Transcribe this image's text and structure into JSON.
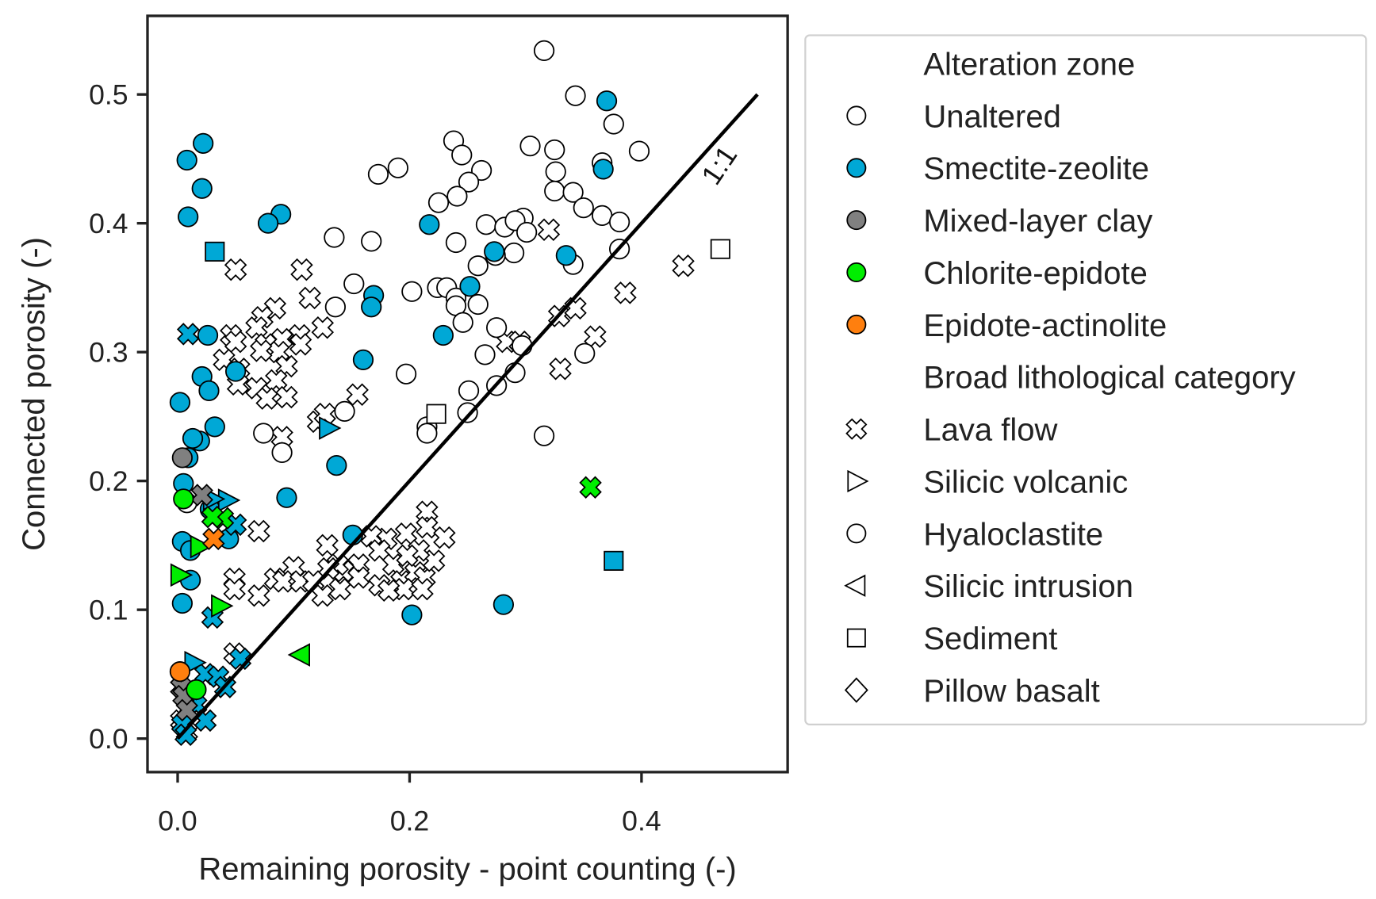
{
  "chart_data": {
    "type": "scatter",
    "xlabel": "Remaining porosity - point counting (-)",
    "ylabel": "Connected porosity (-)",
    "xlim": [
      -0.026,
      0.526
    ],
    "ylim": [
      -0.026,
      0.561
    ],
    "xticks": [
      0.0,
      0.2,
      0.4
    ],
    "xtick_labels": [
      "0.0",
      "0.2",
      "0.4"
    ],
    "yticks": [
      0.0,
      0.1,
      0.2,
      0.3,
      0.4,
      0.5
    ],
    "ytick_labels": [
      "0.0",
      "0.1",
      "0.2",
      "0.3",
      "0.4",
      "0.5"
    ],
    "grid": false,
    "legend_placement": "outside-right",
    "reference_line": {
      "label": "1:1",
      "from": [
        0,
        0
      ],
      "to": [
        0.5,
        0.5
      ],
      "color": "#000000"
    },
    "colors": {
      "Unaltered": "#ffffff",
      "Smectite-zeolite": "#00a8d6",
      "Mixed-layer clay": "#808080",
      "Chlorite-epidote": "#00ee00",
      "Epidote-actinolite": "#ff7f0e"
    },
    "legend": [
      {
        "label": "Alteration zone",
        "marker": "none"
      },
      {
        "label": "Unaltered",
        "marker": "circle",
        "color": "#ffffff"
      },
      {
        "label": "Smectite-zeolite",
        "marker": "circle",
        "color": "#00a8d6"
      },
      {
        "label": "Mixed-layer clay",
        "marker": "circle",
        "color": "#808080"
      },
      {
        "label": "Chlorite-epidote",
        "marker": "circle",
        "color": "#00ee00"
      },
      {
        "label": "Epidote-actinolite",
        "marker": "circle",
        "color": "#ff7f0e"
      },
      {
        "label": "Broad lithological category",
        "marker": "none"
      },
      {
        "label": "Lava flow",
        "marker": "x",
        "color": "#ffffff"
      },
      {
        "label": "Silicic volcanic",
        "marker": "tri-right",
        "color": "#ffffff"
      },
      {
        "label": "Hyaloclastite",
        "marker": "circle",
        "color": "#ffffff"
      },
      {
        "label": "Silicic intrusion",
        "marker": "tri-left",
        "color": "#ffffff"
      },
      {
        "label": "Sediment",
        "marker": "square",
        "color": "#ffffff"
      },
      {
        "label": "Pillow basalt",
        "marker": "diamond",
        "color": "#ffffff"
      }
    ],
    "series": [
      {
        "alteration": "Unaltered",
        "lithology": "Lava flow",
        "marker": "x",
        "points": [
          [
            0.05,
            0.364
          ],
          [
            0.107,
            0.364
          ],
          [
            0.32,
            0.395
          ],
          [
            0.436,
            0.367
          ],
          [
            0.386,
            0.346
          ],
          [
            0.114,
            0.342
          ],
          [
            0.084,
            0.334
          ],
          [
            0.073,
            0.327
          ],
          [
            0.068,
            0.319
          ],
          [
            0.125,
            0.319
          ],
          [
            0.105,
            0.313
          ],
          [
            0.046,
            0.313
          ],
          [
            0.05,
            0.308
          ],
          [
            0.076,
            0.306
          ],
          [
            0.09,
            0.31
          ],
          [
            0.106,
            0.306
          ],
          [
            0.087,
            0.3
          ],
          [
            0.072,
            0.301
          ],
          [
            0.04,
            0.294
          ],
          [
            0.053,
            0.287
          ],
          [
            0.094,
            0.289
          ],
          [
            0.085,
            0.278
          ],
          [
            0.052,
            0.275
          ],
          [
            0.068,
            0.272
          ],
          [
            0.077,
            0.264
          ],
          [
            0.094,
            0.265
          ],
          [
            0.155,
            0.267
          ],
          [
            0.329,
            0.328
          ],
          [
            0.343,
            0.334
          ],
          [
            0.36,
            0.312
          ],
          [
            0.33,
            0.287
          ],
          [
            0.284,
            0.308
          ],
          [
            0.295,
            0.308
          ],
          [
            0.121,
            0.246
          ],
          [
            0.127,
            0.252
          ],
          [
            0.09,
            0.234
          ],
          [
            0.07,
            0.161
          ],
          [
            0.049,
            0.124
          ],
          [
            0.049,
            0.116
          ],
          [
            0.07,
            0.111
          ],
          [
            0.049,
            0.066
          ],
          [
            0.215,
            0.176
          ],
          [
            0.215,
            0.164
          ],
          [
            0.23,
            0.156
          ],
          [
            0.129,
            0.15
          ],
          [
            0.197,
            0.159
          ],
          [
            0.18,
            0.155
          ],
          [
            0.167,
            0.157
          ],
          [
            0.174,
            0.146
          ],
          [
            0.186,
            0.135
          ],
          [
            0.156,
            0.135
          ],
          [
            0.143,
            0.13
          ],
          [
            0.138,
            0.135
          ],
          [
            0.13,
            0.132
          ],
          [
            0.1,
            0.133
          ],
          [
            0.084,
            0.124
          ],
          [
            0.091,
            0.122
          ],
          [
            0.106,
            0.122
          ],
          [
            0.117,
            0.122
          ],
          [
            0.125,
            0.111
          ],
          [
            0.14,
            0.116
          ],
          [
            0.156,
            0.125
          ],
          [
            0.174,
            0.119
          ],
          [
            0.193,
            0.122
          ],
          [
            0.205,
            0.129
          ],
          [
            0.213,
            0.125
          ],
          [
            0.221,
            0.138
          ],
          [
            0.208,
            0.146
          ],
          [
            0.198,
            0.142
          ],
          [
            0.195,
            0.116
          ],
          [
            0.182,
            0.115
          ],
          [
            0.211,
            0.116
          ],
          [
            0.011,
            0.025
          ],
          [
            0.003,
            0.014
          ],
          [
            0.008,
            0.005
          ]
        ]
      },
      {
        "alteration": "Unaltered",
        "lithology": "Hyaloclastite",
        "marker": "circle",
        "points": [
          [
            0.316,
            0.534
          ],
          [
            0.343,
            0.499
          ],
          [
            0.376,
            0.477
          ],
          [
            0.398,
            0.456
          ],
          [
            0.304,
            0.46
          ],
          [
            0.325,
            0.457
          ],
          [
            0.238,
            0.464
          ],
          [
            0.245,
            0.453
          ],
          [
            0.19,
            0.443
          ],
          [
            0.173,
            0.438
          ],
          [
            0.262,
            0.441
          ],
          [
            0.251,
            0.432
          ],
          [
            0.326,
            0.44
          ],
          [
            0.325,
            0.425
          ],
          [
            0.341,
            0.424
          ],
          [
            0.35,
            0.412
          ],
          [
            0.366,
            0.406
          ],
          [
            0.381,
            0.401
          ],
          [
            0.366,
            0.447
          ],
          [
            0.241,
            0.421
          ],
          [
            0.225,
            0.416
          ],
          [
            0.266,
            0.399
          ],
          [
            0.282,
            0.397
          ],
          [
            0.298,
            0.404
          ],
          [
            0.291,
            0.402
          ],
          [
            0.301,
            0.393
          ],
          [
            0.135,
            0.389
          ],
          [
            0.167,
            0.386
          ],
          [
            0.24,
            0.385
          ],
          [
            0.381,
            0.38
          ],
          [
            0.29,
            0.377
          ],
          [
            0.274,
            0.375
          ],
          [
            0.259,
            0.367
          ],
          [
            0.341,
            0.368
          ],
          [
            0.152,
            0.353
          ],
          [
            0.202,
            0.347
          ],
          [
            0.224,
            0.35
          ],
          [
            0.232,
            0.35
          ],
          [
            0.24,
            0.342
          ],
          [
            0.24,
            0.336
          ],
          [
            0.136,
            0.335
          ],
          [
            0.259,
            0.337
          ],
          [
            0.246,
            0.323
          ],
          [
            0.275,
            0.319
          ],
          [
            0.297,
            0.305
          ],
          [
            0.265,
            0.298
          ],
          [
            0.291,
            0.284
          ],
          [
            0.351,
            0.299
          ],
          [
            0.197,
            0.283
          ],
          [
            0.251,
            0.27
          ],
          [
            0.144,
            0.254
          ],
          [
            0.25,
            0.253
          ],
          [
            0.275,
            0.274
          ],
          [
            0.215,
            0.242
          ],
          [
            0.215,
            0.237
          ],
          [
            0.074,
            0.237
          ],
          [
            0.09,
            0.222
          ],
          [
            0.316,
            0.235
          ],
          [
            0.008,
            0.183
          ]
        ]
      },
      {
        "alteration": "Unaltered",
        "lithology": "Sediment",
        "marker": "square",
        "points": [
          [
            0.468,
            0.38
          ],
          [
            0.223,
            0.252
          ]
        ]
      },
      {
        "alteration": "Smectite-zeolite",
        "lithology": "Hyaloclastite",
        "marker": "circle",
        "points": [
          [
            0.37,
            0.495
          ],
          [
            0.367,
            0.442
          ],
          [
            0.022,
            0.462
          ],
          [
            0.008,
            0.449
          ],
          [
            0.021,
            0.427
          ],
          [
            0.009,
            0.405
          ],
          [
            0.089,
            0.407
          ],
          [
            0.078,
            0.4
          ],
          [
            0.217,
            0.399
          ],
          [
            0.273,
            0.378
          ],
          [
            0.335,
            0.375
          ],
          [
            0.252,
            0.351
          ],
          [
            0.169,
            0.344
          ],
          [
            0.167,
            0.335
          ],
          [
            0.229,
            0.313
          ],
          [
            0.026,
            0.313
          ],
          [
            0.16,
            0.294
          ],
          [
            0.05,
            0.285
          ],
          [
            0.021,
            0.281
          ],
          [
            0.027,
            0.27
          ],
          [
            0.002,
            0.261
          ],
          [
            0.032,
            0.242
          ],
          [
            0.019,
            0.231
          ],
          [
            0.013,
            0.233
          ],
          [
            0.009,
            0.218
          ],
          [
            0.137,
            0.212
          ],
          [
            0.005,
            0.198
          ],
          [
            0.094,
            0.187
          ],
          [
            0.028,
            0.178
          ],
          [
            0.151,
            0.158
          ],
          [
            0.044,
            0.155
          ],
          [
            0.004,
            0.153
          ],
          [
            0.011,
            0.146
          ],
          [
            0.011,
            0.123
          ],
          [
            0.004,
            0.105
          ],
          [
            0.202,
            0.096
          ],
          [
            0.281,
            0.104
          ]
        ]
      },
      {
        "alteration": "Smectite-zeolite",
        "lithology": "Sediment",
        "marker": "square",
        "points": [
          [
            0.032,
            0.378
          ],
          [
            0.376,
            0.138
          ]
        ]
      },
      {
        "alteration": "Smectite-zeolite",
        "lithology": "Lava flow",
        "marker": "x",
        "points": [
          [
            0.009,
            0.314
          ],
          [
            0.03,
            0.094
          ],
          [
            0.05,
            0.166
          ],
          [
            0.024,
            0.05
          ],
          [
            0.035,
            0.048
          ],
          [
            0.041,
            0.04
          ],
          [
            0.054,
            0.062
          ],
          [
            0.016,
            0.026
          ],
          [
            0.024,
            0.014
          ],
          [
            0.004,
            0.011
          ],
          [
            0.007,
            0.003
          ]
        ]
      },
      {
        "alteration": "Smectite-zeolite",
        "lithology": "Silicic volcanic",
        "marker": "tri-right",
        "points": [
          [
            0.043,
            0.185
          ],
          [
            0.03,
            0.186
          ],
          [
            0.014,
            0.059
          ],
          [
            0.13,
            0.241
          ]
        ]
      },
      {
        "alteration": "Mixed-layer clay",
        "lithology": "Hyaloclastite",
        "marker": "circle",
        "points": [
          [
            0.004,
            0.218
          ]
        ]
      },
      {
        "alteration": "Mixed-layer clay",
        "lithology": "Lava flow",
        "marker": "x",
        "points": [
          [
            0.021,
            0.189
          ],
          [
            0.003,
            0.04
          ],
          [
            0.005,
            0.033
          ],
          [
            0.008,
            0.022
          ]
        ]
      },
      {
        "alteration": "Chlorite-epidote",
        "lithology": "Lava flow",
        "marker": "x",
        "points": [
          [
            0.356,
            0.195
          ],
          [
            0.039,
            0.171
          ],
          [
            0.03,
            0.172
          ]
        ]
      },
      {
        "alteration": "Chlorite-epidote",
        "lithology": "Silicic intrusion",
        "marker": "tri-left",
        "points": [
          [
            0.106,
            0.065
          ]
        ]
      },
      {
        "alteration": "Chlorite-epidote",
        "lithology": "Silicic volcanic",
        "marker": "tri-right",
        "points": [
          [
            0.037,
            0.103
          ],
          [
            0.002,
            0.127
          ],
          [
            0.019,
            0.149
          ]
        ]
      },
      {
        "alteration": "Chlorite-epidote",
        "lithology": "Hyaloclastite",
        "marker": "circle",
        "points": [
          [
            0.005,
            0.186
          ],
          [
            0.016,
            0.038
          ]
        ]
      },
      {
        "alteration": "Epidote-actinolite",
        "lithology": "Lava flow",
        "marker": "x",
        "points": [
          [
            0.031,
            0.155
          ]
        ]
      },
      {
        "alteration": "Epidote-actinolite",
        "lithology": "Hyaloclastite",
        "marker": "circle",
        "points": [
          [
            0.002,
            0.052
          ]
        ]
      }
    ]
  }
}
